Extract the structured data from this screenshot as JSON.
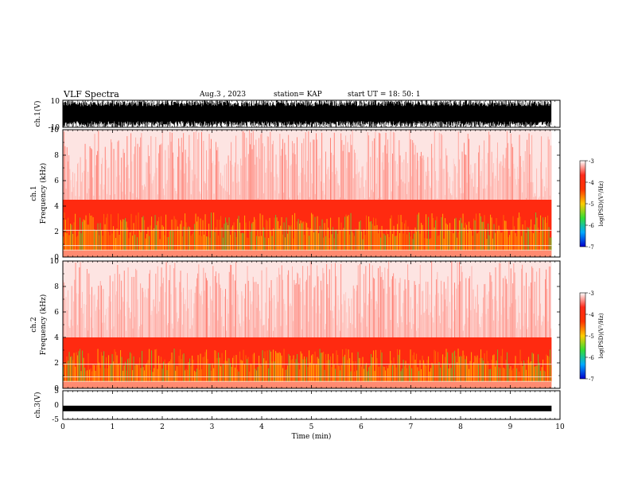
{
  "header": {
    "title": "VLF Spectra",
    "date": "Aug.3 , 2023",
    "station": "station= KAP",
    "start": "start UT = 18: 50: 1"
  },
  "colorbar": {
    "label": "log(PSD)(V²/Hz)",
    "ticks": [
      "-3",
      "-4",
      "-5",
      "-6",
      "-7"
    ],
    "stops": [
      "#ffffff",
      "#ff2a1a",
      "#ff3300",
      "#ffcc00",
      "#33dd33",
      "#00aaff",
      "#0000cc"
    ]
  },
  "chart_data": [
    {
      "type": "line",
      "title": "",
      "xlabel": "",
      "ylabel": "ch.1(V)",
      "ylim": [
        -10,
        10
      ],
      "yticks": [
        "10",
        "-10"
      ],
      "xlim": [
        0,
        10
      ],
      "description_values": {
        "amplitude_band": [
          -10,
          10
        ]
      },
      "color": "#000000"
    },
    {
      "type": "heatmap",
      "ylabel_top": "ch.1",
      "ylabel": "Frequency (kHz)",
      "ylim": [
        0,
        10
      ],
      "yticks": [
        "0",
        "2",
        "4",
        "6",
        "8",
        "10"
      ],
      "xlim": [
        0,
        10
      ],
      "data_extent_min": 9.83,
      "strong_band_khz": [
        0.5,
        4.5
      ],
      "horizontal_lines_khz": [
        2.1,
        0.9,
        0.55
      ],
      "zlim": [
        -7,
        -3
      ]
    },
    {
      "type": "heatmap",
      "ylabel_top": "ch.2",
      "ylabel": "Frequency (kHz)",
      "ylim": [
        0,
        10
      ],
      "yticks": [
        "0",
        "2",
        "4",
        "6",
        "8",
        "10"
      ],
      "xlim": [
        0,
        10
      ],
      "data_extent_min": 9.83,
      "strong_band_khz": [
        0.5,
        4.0
      ],
      "horizontal_lines_khz": [
        1.9,
        0.9,
        0.55
      ],
      "zlim": [
        -7,
        -3
      ]
    },
    {
      "type": "line",
      "ylabel": "ch.3(V)",
      "xlabel": "Time (min)",
      "ylim": [
        -5,
        5
      ],
      "yticks": [
        "5",
        "0",
        "-5"
      ],
      "xlim": [
        0,
        10
      ],
      "xticks": [
        "0",
        "1",
        "2",
        "3",
        "4",
        "5",
        "6",
        "7",
        "8",
        "9",
        "10"
      ],
      "signal_level_v": -1.2,
      "color": "#000000"
    }
  ]
}
